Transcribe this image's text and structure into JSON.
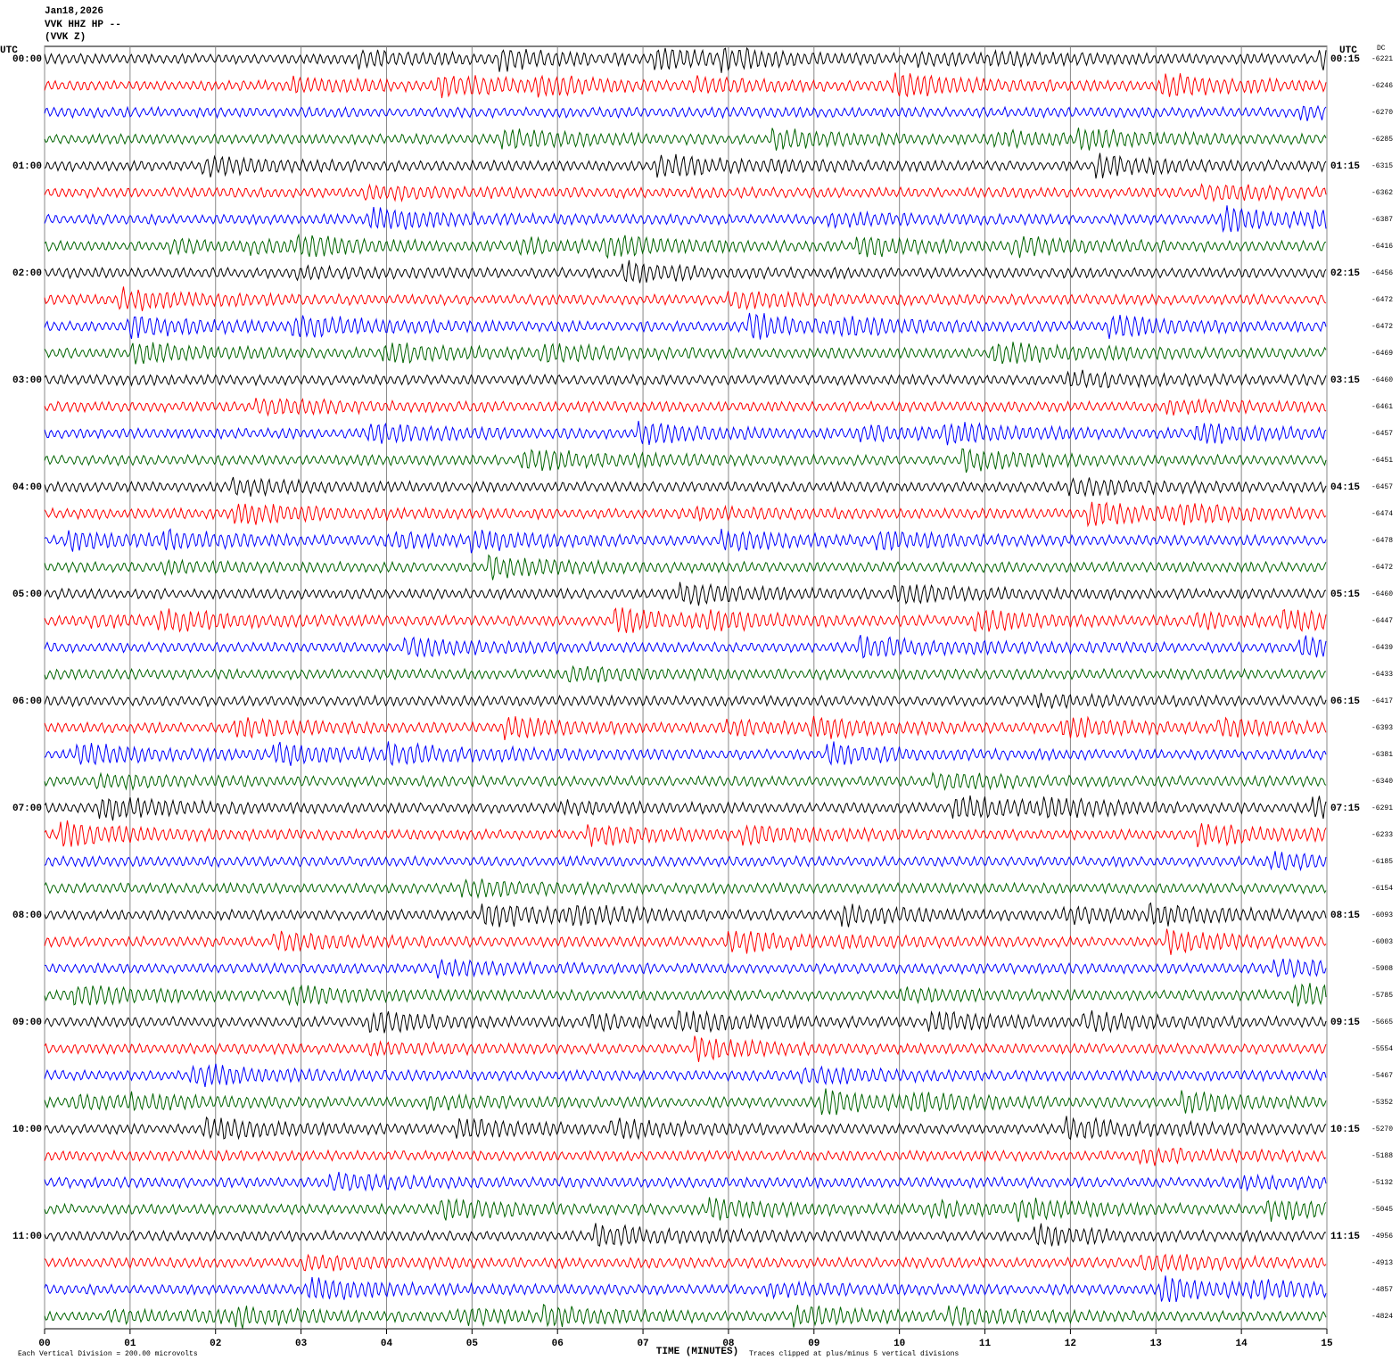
{
  "chart_data": {
    "type": "helicorder",
    "header": [
      "Jan18,2026",
      "VVK HHZ HP --",
      "(VVK Z)"
    ],
    "left_axis_title": "UTC",
    "right_axis_title": "UTC",
    "dc_title": "DC",
    "left_labels": [
      "00:00",
      "01:00",
      "02:00",
      "03:00",
      "04:00",
      "05:00",
      "06:00",
      "07:00",
      "08:00",
      "09:00",
      "10:00",
      "11:00"
    ],
    "right_labels": [
      "00:15",
      "01:15",
      "02:15",
      "03:15",
      "04:15",
      "05:15",
      "06:15",
      "07:15",
      "08:15",
      "09:15",
      "10:15",
      "11:15"
    ],
    "dc_values": [
      -6221,
      -6246,
      -6270,
      -6285,
      -6315,
      -6362,
      -6387,
      -6416,
      -6456,
      -6472,
      -6472,
      -6469,
      -6460,
      -6461,
      -6457,
      -6451,
      -6457,
      -6474,
      -6478,
      -6472,
      -6460,
      -6447,
      -6439,
      -6433,
      -6417,
      -6393,
      -6381,
      -6340,
      -6291,
      -6233,
      -6185,
      -6154,
      -6093,
      -6003,
      -5908,
      -5785,
      -5665,
      -5554,
      -5467,
      -5352,
      -5270,
      -5188,
      -5132,
      -5045,
      -4956,
      -4913,
      -4857,
      -4824
    ],
    "colors": [
      "#000000",
      "#ff0000",
      "#0000ff",
      "#006400"
    ],
    "xlim": [
      0,
      15
    ],
    "xticks": [
      {
        "value": 0,
        "label": "00"
      },
      {
        "value": 1,
        "label": "01"
      },
      {
        "value": 2,
        "label": "02"
      },
      {
        "value": 3,
        "label": "03"
      },
      {
        "value": 4,
        "label": "04"
      },
      {
        "value": 5,
        "label": "05"
      },
      {
        "value": 6,
        "label": "06"
      },
      {
        "value": 7,
        "label": "07"
      },
      {
        "value": 8,
        "label": "08"
      },
      {
        "value": 9,
        "label": "09"
      },
      {
        "value": 10,
        "label": "10"
      },
      {
        "value": 11,
        "label": "11"
      },
      {
        "value": 12,
        "label": "12"
      },
      {
        "value": 13,
        "label": "13"
      },
      {
        "value": 14,
        "label": "14"
      },
      {
        "value": 15,
        "label": "15"
      }
    ],
    "xlabel": "TIME (MINUTES)",
    "scale_note": "Each Vertical Division =  200.00 microvolts",
    "clip_note": "Traces clipped at plus/minus 5 vertical divisions",
    "grid": true
  }
}
